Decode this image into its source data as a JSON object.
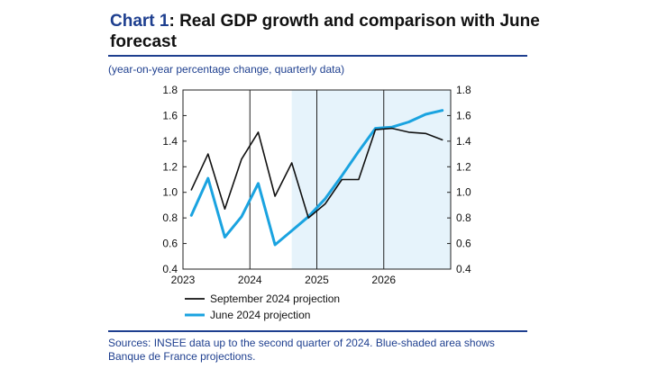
{
  "header": {
    "chart_number": "Chart 1",
    "title_rest": ": Real GDP growth and comparison with June forecast",
    "subtitle": "(year-on-year percentage change, quarterly data)"
  },
  "footer": {
    "source": "Sources: INSEE data up to the second quarter of 2024. Blue-shaded area shows Banque de France projections."
  },
  "colors": {
    "title_accent": "#1e3f8f",
    "september": "#111111",
    "june": "#1aa3e0",
    "projection_shade": "#e6f3fb"
  },
  "chart_data": {
    "type": "line",
    "title": "Real GDP growth and comparison with June forecast",
    "xlabel": "",
    "ylabel": "year-on-year percentage change, quarterly data",
    "ylim": [
      0.4,
      1.8
    ],
    "yticks": [
      "0.4",
      "0.6",
      "0.8",
      "1.0",
      "1.2",
      "1.4",
      "1.6",
      "1.8"
    ],
    "xticks": [
      "2023",
      "2024",
      "2025",
      "2026"
    ],
    "quarters": [
      "2023Q1",
      "2023Q2",
      "2023Q3",
      "2023Q4",
      "2024Q1",
      "2024Q2",
      "2024Q3",
      "2024Q4",
      "2025Q1",
      "2025Q2",
      "2025Q3",
      "2025Q4",
      "2026Q1",
      "2026Q2",
      "2026Q3",
      "2026Q4"
    ],
    "projection_start": 6.5,
    "projection_end": 15.5,
    "legend_position": "bottom-left",
    "series": [
      {
        "name": "September 2024 projection",
        "values": [
          1.02,
          1.3,
          0.87,
          1.26,
          1.47,
          0.97,
          1.23,
          0.8,
          0.91,
          1.1,
          1.1,
          1.49,
          1.5,
          1.47,
          1.46,
          1.41
        ]
      },
      {
        "name": "June 2024 projection",
        "values": [
          0.82,
          1.11,
          0.65,
          0.81,
          1.07,
          0.59,
          0.7,
          0.81,
          0.95,
          1.13,
          1.32,
          1.5,
          1.51,
          1.55,
          1.61,
          1.64
        ]
      }
    ]
  }
}
